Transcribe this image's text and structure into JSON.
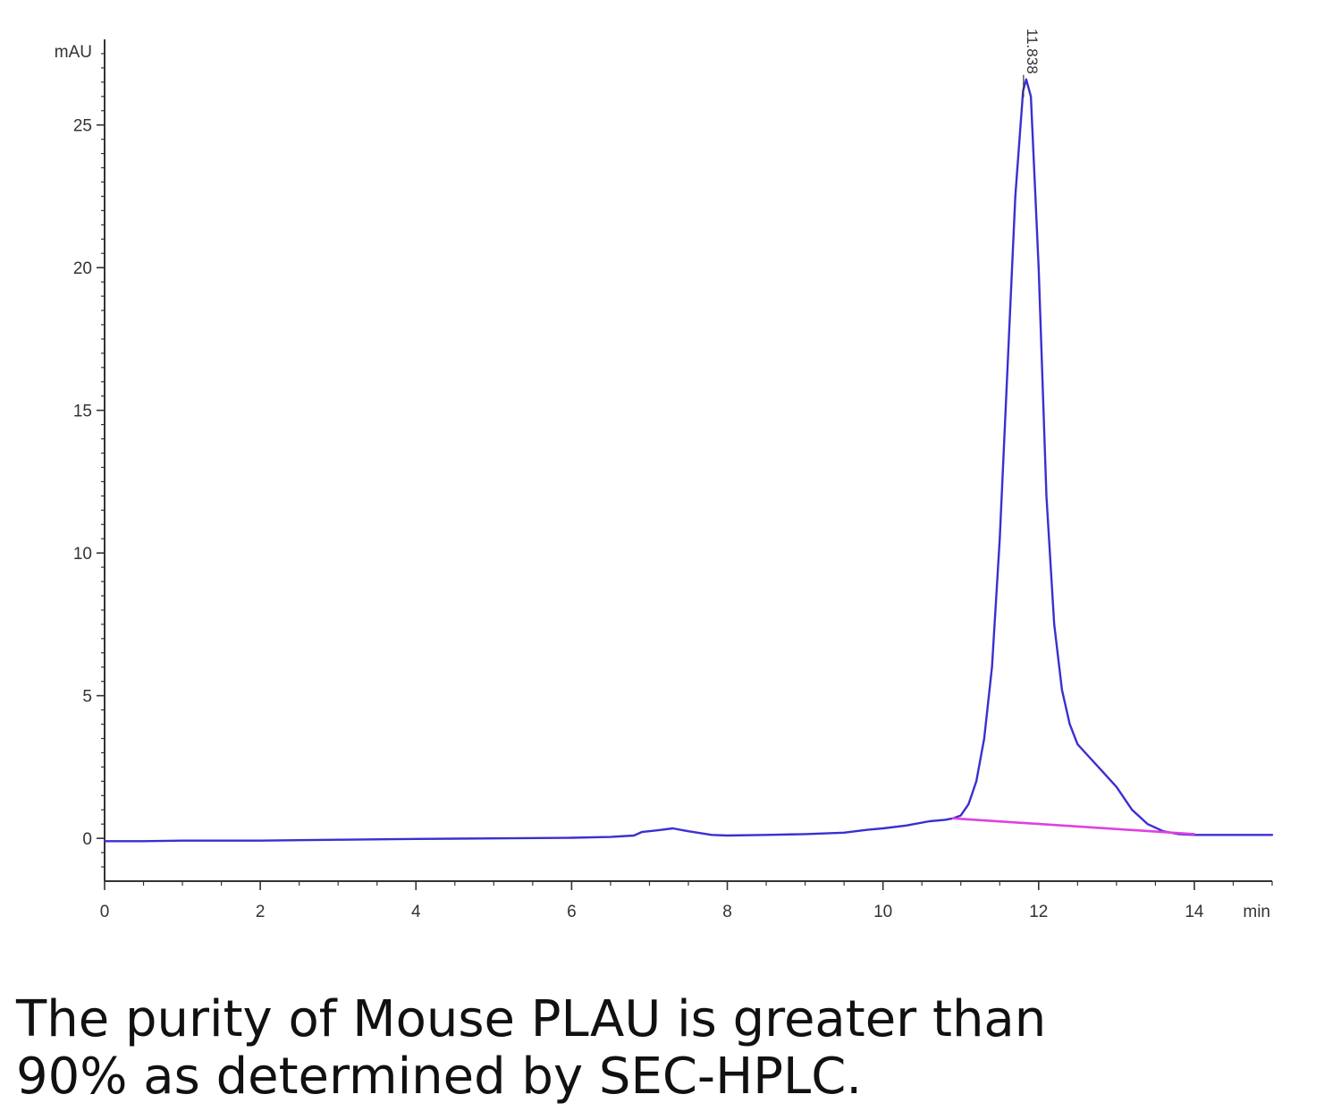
{
  "chart_data": {
    "type": "line",
    "title": "",
    "xlabel": "min",
    "ylabel": "mAU",
    "xlim": [
      0,
      15
    ],
    "ylim": [
      -1.5,
      28
    ],
    "x_ticks": [
      0,
      2,
      4,
      6,
      8,
      10,
      12,
      14
    ],
    "y_ticks": [
      0,
      5,
      10,
      15,
      20,
      25
    ],
    "grid": false,
    "legend": "none",
    "series": [
      {
        "color": "#3b2fd0",
        "x": [
          0,
          0.5,
          1,
          2,
          3,
          4,
          5,
          6,
          6.5,
          6.8,
          6.9,
          7.1,
          7.3,
          7.5,
          7.8,
          8,
          8.5,
          9,
          9.5,
          9.8,
          10,
          10.3,
          10.6,
          10.8,
          10.9,
          11.0,
          11.1,
          11.2,
          11.3,
          11.4,
          11.5,
          11.6,
          11.7,
          11.8,
          11.84,
          11.9,
          12.0,
          12.1,
          12.2,
          12.3,
          12.4,
          12.5,
          12.6,
          12.8,
          13.0,
          13.2,
          13.4,
          13.6,
          13.8,
          14.0,
          14.2,
          14.5,
          15.0
        ],
        "y": [
          -0.1,
          -0.1,
          -0.08,
          -0.08,
          -0.05,
          -0.02,
          0.0,
          0.02,
          0.05,
          0.1,
          0.22,
          0.28,
          0.35,
          0.25,
          0.12,
          0.1,
          0.12,
          0.15,
          0.2,
          0.3,
          0.35,
          0.45,
          0.6,
          0.65,
          0.7,
          0.8,
          1.2,
          2.0,
          3.5,
          6.0,
          10.5,
          16.5,
          22.5,
          26.2,
          26.6,
          26.0,
          20.0,
          12.0,
          7.5,
          5.2,
          4.0,
          3.3,
          3.0,
          2.4,
          1.8,
          1.0,
          0.5,
          0.25,
          0.15,
          0.12,
          0.12,
          0.12,
          0.12
        ]
      },
      {
        "color": "#e040e0",
        "x": [
          10.9,
          14.0
        ],
        "y": [
          0.7,
          0.15
        ]
      }
    ],
    "annotations": [
      {
        "text": "11.838",
        "x": 11.84,
        "y": 26.6
      }
    ]
  },
  "caption": {
    "line1": "The purity of Mouse PLAU is greater than",
    "line2": "90% as determined by SEC-HPLC."
  },
  "colors": {
    "axis": "#333333",
    "trace": "#3b2fd0",
    "baseline": "#e040e0"
  }
}
